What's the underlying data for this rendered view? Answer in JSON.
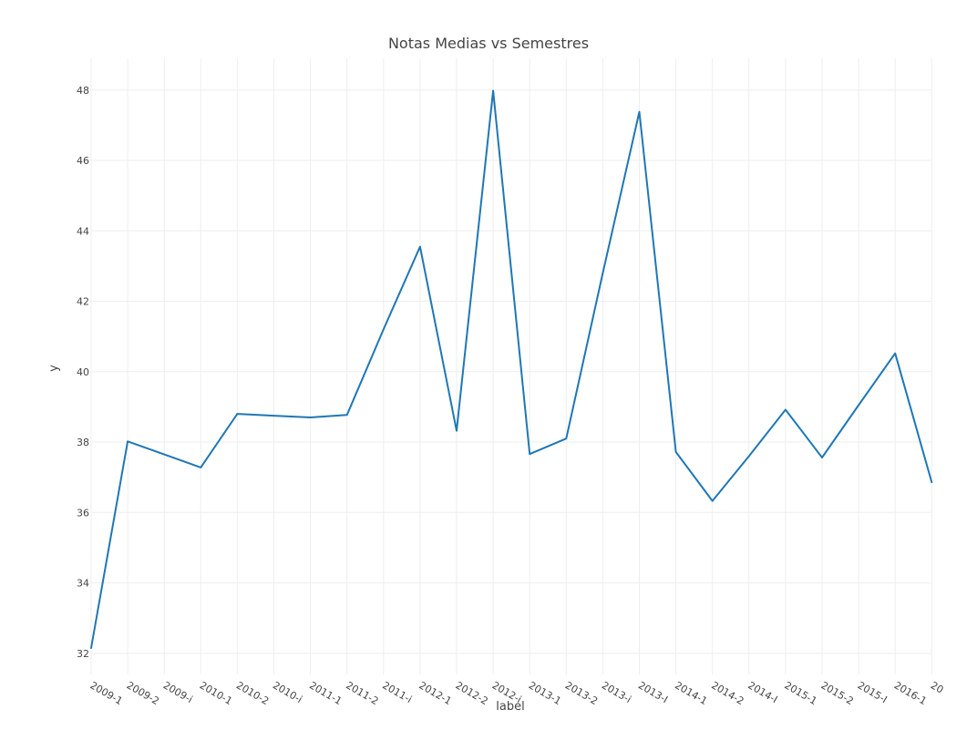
{
  "chart_data": {
    "type": "line",
    "title": "Notas Medias vs Semestres",
    "xlabel": "label",
    "ylabel": "y",
    "ylim": [
      31.4,
      48.9
    ],
    "yticks": [
      32,
      34,
      36,
      38,
      40,
      42,
      44,
      46,
      48
    ],
    "grid": true,
    "legend": false,
    "colors": {
      "line": "#1f77b4",
      "grid": "#eeeeee",
      "text": "#444444"
    },
    "categories": [
      "2009-1",
      "2009-2",
      "2009-i",
      "2010-1",
      "2010-2",
      "2010-i",
      "2011-1",
      "2011-2",
      "2011-i",
      "2012-1",
      "2012-2",
      "2012-i",
      "2013-1",
      "2013-2",
      "2013-i",
      "2013-I",
      "2014-1",
      "2014-2",
      "2014-I",
      "2015-1",
      "2015-2",
      "2015-I",
      "2016-1",
      "20"
    ],
    "values": [
      32.15,
      38.02,
      37.65,
      37.28,
      38.8,
      38.75,
      38.7,
      38.77,
      41.2,
      43.55,
      38.32,
      47.98,
      37.66,
      38.1,
      42.8,
      47.38,
      37.72,
      36.33,
      37.6,
      38.92,
      37.56,
      39.05,
      40.52,
      36.86
    ]
  }
}
